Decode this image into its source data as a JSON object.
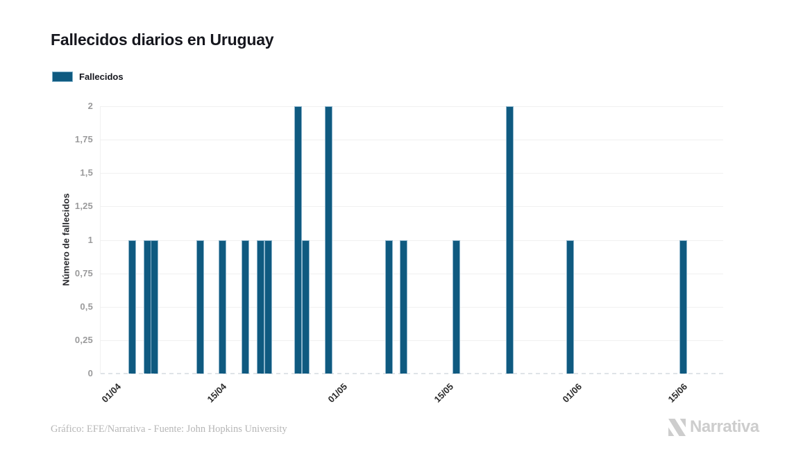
{
  "header": {
    "title": "Fallecidos diarios en Uruguay"
  },
  "legend": {
    "items": [
      {
        "label": "Fallecidos",
        "color": "#0f5a80"
      }
    ]
  },
  "chart_data": {
    "type": "bar",
    "title": "Fallecidos diarios en Uruguay",
    "series_name": "Fallecidos",
    "x": [
      "05/04",
      "07/04",
      "08/04",
      "14/04",
      "17/04",
      "20/04",
      "22/04",
      "23/04",
      "27/04",
      "28/04",
      "01/05",
      "09/05",
      "11/05",
      "18/05",
      "25/05",
      "02/06",
      "17/06"
    ],
    "values": [
      1,
      1,
      1,
      1,
      1,
      1,
      1,
      1,
      2,
      1,
      2,
      1,
      1,
      1,
      2,
      1,
      1
    ],
    "xlabel": "",
    "ylabel": "Número de fallecidos",
    "ylim": [
      0,
      2
    ],
    "y_tick_step": 0.25,
    "x_tick_labels": [
      "01/04",
      "15/04",
      "01/05",
      "15/05",
      "01/06",
      "15/06"
    ],
    "y_tick_labels": [
      "0",
      "0,25",
      "0,5",
      "0,75",
      "1",
      "1,25",
      "1,5",
      "1,75",
      "2"
    ],
    "x_range": [
      "01/04",
      "22/06"
    ],
    "grid": "horizontal",
    "legend_position": "top-left",
    "bar_color": "#0f5a80",
    "bar_border_color": "#8cb4cb"
  },
  "footer": {
    "credit": "Gráfico: EFE/Narrativa - Fuente: John Hopkins University",
    "brand": "Narrativa"
  }
}
